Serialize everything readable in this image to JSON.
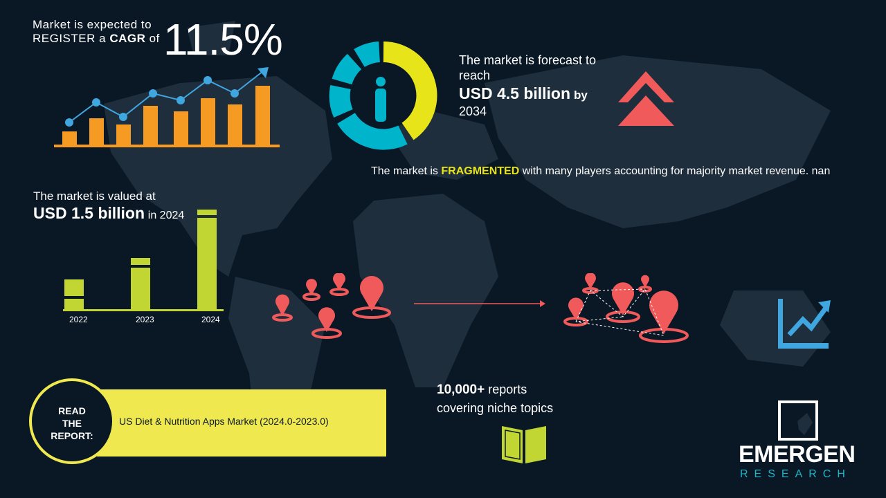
{
  "cagr": {
    "line1": "Market is expected to",
    "line2_prefix": "REGISTER a ",
    "line2_bold": "CAGR",
    "line2_suffix": " of",
    "value": "11.5%"
  },
  "forecast": {
    "line1": "The market is forecast to reach",
    "value": "USD 4.5 billion",
    "by": "by",
    "year": "2034"
  },
  "fragmented": {
    "prefix": "The market is ",
    "highlight": "FRAGMENTED",
    "suffix": " with many players accounting for majority market revenue. nan"
  },
  "valued": {
    "line1": "The market is valued at",
    "value": "USD 1.5 billion",
    "suffix": "in 2024"
  },
  "value_chart": {
    "years": [
      "2022",
      "2023",
      "2024"
    ]
  },
  "reports": {
    "count": "10,000+",
    "line1_suffix": " reports",
    "line2": "covering niche topics"
  },
  "read_report": {
    "label_lines": [
      "READ",
      "THE",
      "REPORT:"
    ],
    "title": "US Diet & Nutrition Apps Market (2024.0-2023.0)"
  },
  "logo": {
    "name": "EMERGEN",
    "sub": "RESEARCH"
  },
  "colors": {
    "background": "#0a1826",
    "map": "#1f2e3c",
    "orange": "#f59a23",
    "blue": "#3fa6e0",
    "yellow": "#e8e41a",
    "lime": "#c2d633",
    "teal": "#00b4cc",
    "red": "#f05a5a",
    "banner": "#efe84e"
  },
  "icons": [
    "growth-bar-chart-icon",
    "donut-person-icon",
    "double-chevron-up-icon",
    "location-pins-icon",
    "network-pins-icon",
    "trend-up-icon",
    "open-book-icon",
    "emergen-logo-icon"
  ]
}
